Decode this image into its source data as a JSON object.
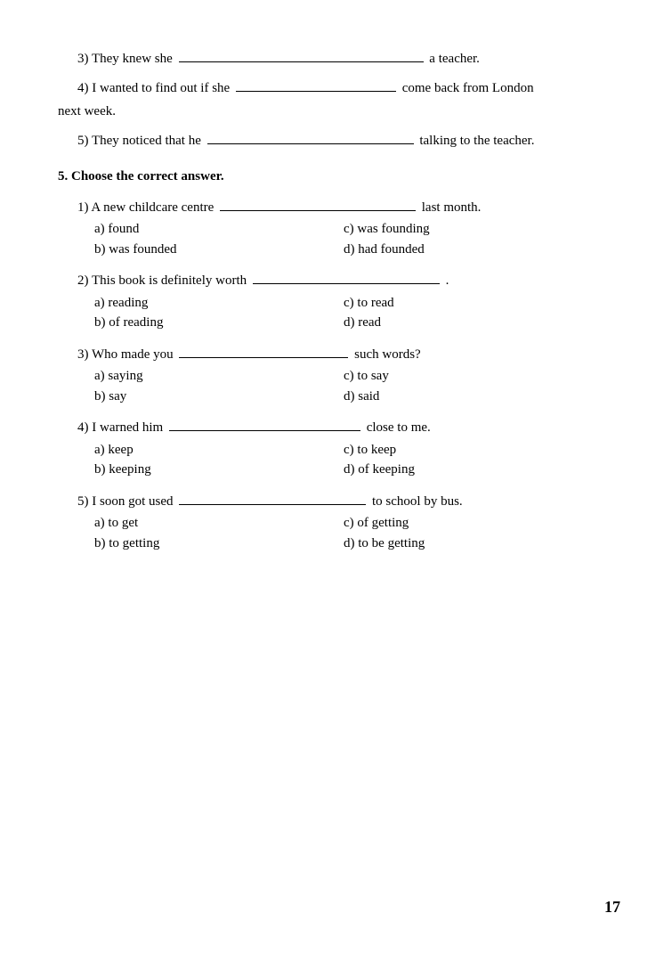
{
  "sentences": {
    "s3": {
      "num": "3)",
      "before": "They knew she",
      "after": "a teacher.",
      "blank_width": 275
    },
    "s4": {
      "num": "4)",
      "before": "I wanted to find out if she",
      "after": "come back from London",
      "cont": "next week.",
      "blank_width": 180
    },
    "s5": {
      "num": "5)",
      "before": "They noticed that he",
      "after": "talking to the teacher.",
      "blank_width": 232
    }
  },
  "section": {
    "num": "5.",
    "title": "Choose the correct answer."
  },
  "questions": [
    {
      "num": "1)",
      "stem_before": "A new childcare centre",
      "stem_after": "last month.",
      "blank_width": 220,
      "a": "a) found",
      "b": "b) was founded",
      "c": "c) was founding",
      "d": "d) had founded"
    },
    {
      "num": "2)",
      "stem_before": "This book is definitely worth",
      "stem_after": ".",
      "blank_width": 210,
      "a": "a) reading",
      "b": "b) of reading",
      "c": "c) to read",
      "d": "d) read"
    },
    {
      "num": "3)",
      "stem_before": "Who made you",
      "stem_after": "such words?",
      "blank_width": 190,
      "a": "a) saying",
      "b": "b) say",
      "c": "c) to say",
      "d": "d) said"
    },
    {
      "num": "4)",
      "stem_before": "I warned him",
      "stem_after": "close to me.",
      "blank_width": 215,
      "a": "a) keep",
      "b": "b) keeping",
      "c": "c) to keep",
      "d": "d) of keeping"
    },
    {
      "num": "5)",
      "stem_before": "I soon got used",
      "stem_after": "to school by bus.",
      "blank_width": 210,
      "a": "a) to get",
      "b": "b) to getting",
      "c": "c) of getting",
      "d": "d) to be getting"
    }
  ],
  "page_number": "17"
}
